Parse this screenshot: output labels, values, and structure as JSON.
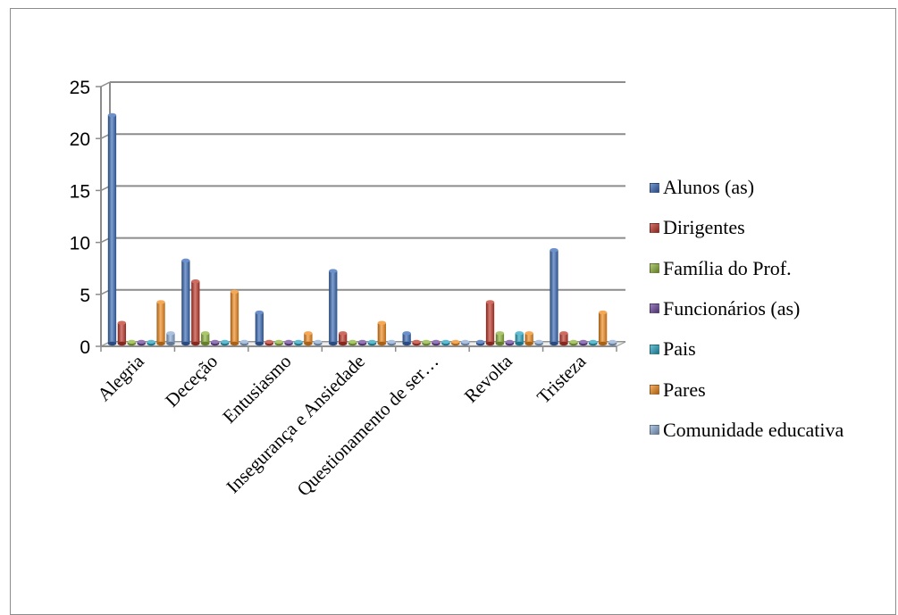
{
  "chart_data": {
    "type": "bar",
    "title": "",
    "xlabel": "",
    "ylabel": "",
    "ylim": [
      0,
      25
    ],
    "yticks": [
      0,
      5,
      10,
      15,
      20,
      25
    ],
    "grid": true,
    "legend_position": "right",
    "categories": [
      "Alegria",
      "Deceção",
      "Entusiasmo",
      "Insegurança e Ansiedade",
      "Questionamento de ser…",
      "Revolta",
      "Tristeza"
    ],
    "series": [
      {
        "name": "Alunos (as)",
        "color": "#3b6bb8",
        "values": [
          22,
          8,
          3,
          7,
          1,
          0,
          9
        ]
      },
      {
        "name": "Dirigentes",
        "color": "#c0392b",
        "values": [
          2,
          6,
          0,
          1,
          0,
          4,
          1
        ]
      },
      {
        "name": "Família do Prof.",
        "color": "#8fb43a",
        "values": [
          0,
          1,
          0,
          0,
          0,
          1,
          0
        ]
      },
      {
        "name": "Funcionários (as)",
        "color": "#6f4a9e",
        "values": [
          0,
          0,
          0,
          0,
          0,
          0,
          0
        ]
      },
      {
        "name": "Pais",
        "color": "#2aa6c2",
        "values": [
          0,
          0,
          0,
          0,
          0,
          1,
          0
        ]
      },
      {
        "name": "Pares",
        "color": "#f28c1e",
        "values": [
          4,
          5,
          1,
          2,
          0,
          1,
          3
        ]
      },
      {
        "name": "Comunidade educativa",
        "color": "#8eaed6",
        "values": [
          1,
          0,
          0,
          0,
          0,
          0,
          0
        ]
      }
    ]
  }
}
